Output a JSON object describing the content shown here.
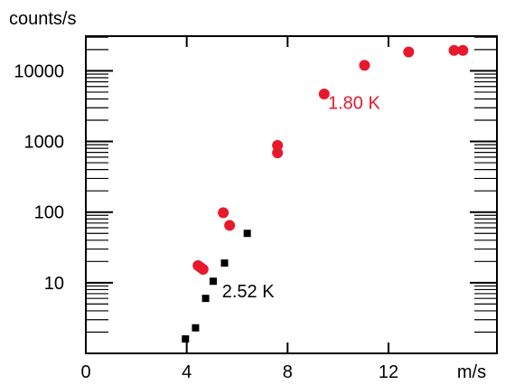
{
  "chart_data": {
    "type": "scatter",
    "title": "",
    "xlabel": "m/s",
    "ylabel": "counts/s",
    "xlim": [
      0,
      16.3
    ],
    "ylim": [
      1,
      31000
    ],
    "yscale": "log",
    "grid": false,
    "x_ticks": [
      {
        "value": 0,
        "label": "0"
      },
      {
        "value": 4,
        "label": "4"
      },
      {
        "value": 8,
        "label": "8"
      },
      {
        "value": 12,
        "label": "12"
      }
    ],
    "y_ticks": [
      {
        "value": 10,
        "label": "10"
      },
      {
        "value": 100,
        "label": "100"
      },
      {
        "value": 1000,
        "label": "1000"
      },
      {
        "value": 10000,
        "label": "10000"
      }
    ],
    "series": [
      {
        "name": "1.80 K",
        "marker": "circle",
        "color": "#e8192c",
        "label_anchor": {
          "x": 9.6,
          "y": 2900
        },
        "points": [
          {
            "x": 4.45,
            "y": 17.5
          },
          {
            "x": 4.55,
            "y": 16.5
          },
          {
            "x": 4.65,
            "y": 15.5
          },
          {
            "x": 5.45,
            "y": 98
          },
          {
            "x": 5.7,
            "y": 65
          },
          {
            "x": 7.6,
            "y": 880
          },
          {
            "x": 7.6,
            "y": 690
          },
          {
            "x": 9.45,
            "y": 4700
          },
          {
            "x": 11.05,
            "y": 12000
          },
          {
            "x": 12.8,
            "y": 18500
          },
          {
            "x": 14.6,
            "y": 19500
          },
          {
            "x": 14.95,
            "y": 19500
          }
        ]
      },
      {
        "name": "2.52 K",
        "marker": "square",
        "color": "#000000",
        "label_anchor": {
          "x": 5.4,
          "y": 6.2
        },
        "points": [
          {
            "x": 3.95,
            "y": 1.6
          },
          {
            "x": 4.35,
            "y": 2.3
          },
          {
            "x": 4.75,
            "y": 6
          },
          {
            "x": 5.05,
            "y": 10.5
          },
          {
            "x": 5.5,
            "y": 19
          },
          {
            "x": 6.4,
            "y": 50
          }
        ]
      }
    ]
  }
}
